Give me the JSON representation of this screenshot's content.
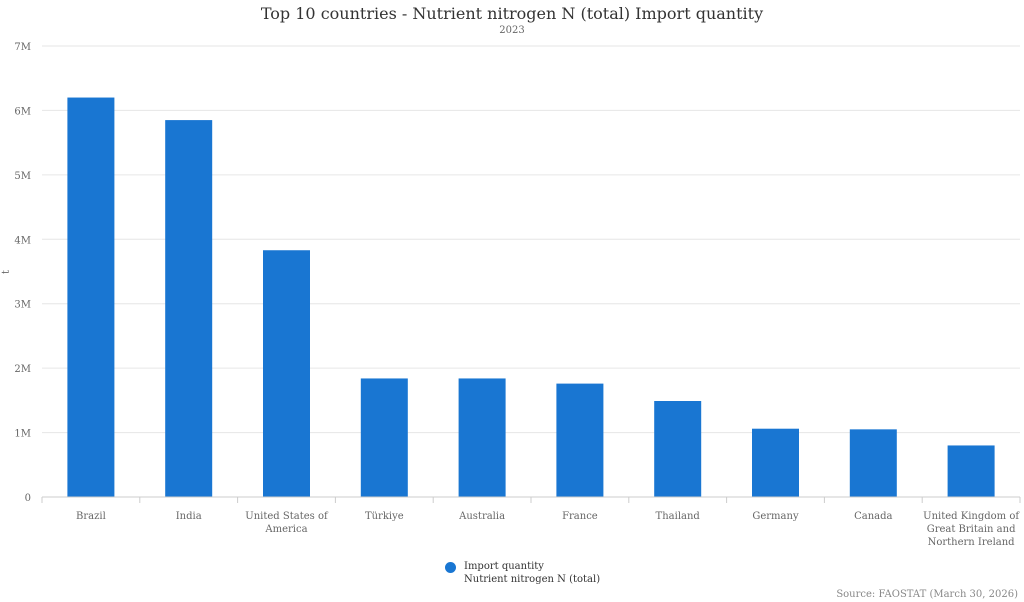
{
  "chart_data": {
    "type": "bar",
    "title": "Top 10 countries - Nutrient nitrogen N (total) Import quantity",
    "subtitle": "2023",
    "ylabel": "t",
    "xlabel": "",
    "ylim": [
      0,
      7000000
    ],
    "yticks": [
      {
        "value": 0,
        "label": "0"
      },
      {
        "value": 1000000,
        "label": "1M"
      },
      {
        "value": 2000000,
        "label": "2M"
      },
      {
        "value": 3000000,
        "label": "3M"
      },
      {
        "value": 4000000,
        "label": "4M"
      },
      {
        "value": 5000000,
        "label": "5M"
      },
      {
        "value": 6000000,
        "label": "6M"
      },
      {
        "value": 7000000,
        "label": "7M"
      }
    ],
    "grid": true,
    "legend_position": "bottom-center",
    "color": "#1976d2",
    "categories": [
      [
        "Brazil"
      ],
      [
        "India"
      ],
      [
        "United States of",
        "America"
      ],
      [
        "Türkiye"
      ],
      [
        "Australia"
      ],
      [
        "France"
      ],
      [
        "Thailand"
      ],
      [
        "Germany"
      ],
      [
        "Canada"
      ],
      [
        "United Kingdom of",
        "Great Britain and",
        "Northern Ireland"
      ]
    ],
    "series": [
      {
        "name": "Import quantity",
        "values": [
          6200000,
          5850000,
          3830000,
          1840000,
          1840000,
          1760000,
          1490000,
          1060000,
          1050000,
          800000
        ]
      }
    ]
  },
  "legend": {
    "line1": "Import quantity",
    "line2": "Nutrient nitrogen N (total)"
  },
  "source": "Source: FAOSTAT (March 30, 2026)"
}
